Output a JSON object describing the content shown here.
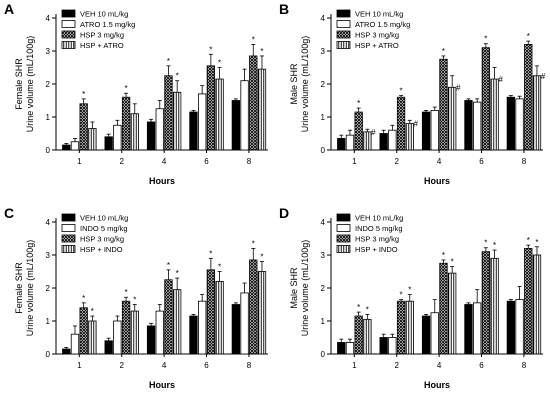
{
  "figure": {
    "background": "#ffffff"
  },
  "chart_data": [
    {
      "panel": "A",
      "type": "bar",
      "ylabel_lines": [
        "Female SHR",
        "Urine volume (mL/100g)"
      ],
      "xlabel": "Hours",
      "categories": [
        "1",
        "2",
        "4",
        "6",
        "8"
      ],
      "ylim": [
        0,
        4
      ],
      "yticks": [
        0,
        1,
        2,
        3,
        4
      ],
      "legend_position": "top-left",
      "series": [
        {
          "name": "VEH 10 mL/kg",
          "fill": "black",
          "values": [
            0.15,
            0.4,
            0.85,
            1.15,
            1.5
          ],
          "errors": [
            0.05,
            0.08,
            0.08,
            0.05,
            0.05
          ],
          "marks": [
            "",
            "",
            "",
            "",
            ""
          ]
        },
        {
          "name": "ATRO 1.5 mg/kg",
          "fill": "white",
          "values": [
            0.25,
            0.75,
            1.25,
            1.7,
            2.1
          ],
          "errors": [
            0.1,
            0.15,
            0.25,
            0.25,
            0.35
          ],
          "marks": [
            "",
            "",
            "",
            "",
            ""
          ]
        },
        {
          "name": "HSP 3 mg/kg",
          "fill": "crosshatch",
          "values": [
            1.4,
            1.6,
            2.25,
            2.55,
            2.85
          ],
          "errors": [
            0.15,
            0.12,
            0.3,
            0.35,
            0.35
          ],
          "marks": [
            "*",
            "*",
            "*",
            "*",
            "*"
          ]
        },
        {
          "name": "HSP + ATRO",
          "fill": "vertical",
          "values": [
            0.65,
            1.1,
            1.75,
            2.15,
            2.45
          ],
          "errors": [
            0.2,
            0.3,
            0.35,
            0.35,
            0.4
          ],
          "marks": [
            "",
            "",
            "*",
            "*",
            "*"
          ]
        }
      ]
    },
    {
      "panel": "B",
      "type": "bar",
      "ylabel_lines": [
        "Male SHR",
        "Urine volume (mL/100g)"
      ],
      "xlabel": "Hours",
      "categories": [
        "1",
        "2",
        "4",
        "6",
        "8"
      ],
      "ylim": [
        0,
        4
      ],
      "yticks": [
        0,
        1,
        2,
        3,
        4
      ],
      "legend_position": "top-left",
      "series": [
        {
          "name": "VEH 10 mL/kg",
          "fill": "black",
          "values": [
            0.35,
            0.5,
            1.15,
            1.5,
            1.6
          ],
          "errors": [
            0.1,
            0.1,
            0.05,
            0.05,
            0.05
          ],
          "marks": [
            "",
            "",
            "",
            "",
            ""
          ]
        },
        {
          "name": "ATRO 1.5 mg/kg",
          "fill": "white",
          "values": [
            0.45,
            0.6,
            1.2,
            1.45,
            1.55
          ],
          "errors": [
            0.15,
            0.15,
            0.1,
            0.1,
            0.08
          ],
          "marks": [
            "",
            "",
            "",
            "",
            ""
          ]
        },
        {
          "name": "HSP 3 mg/kg",
          "fill": "crosshatch",
          "values": [
            1.15,
            1.6,
            2.75,
            3.1,
            3.2
          ],
          "errors": [
            0.12,
            0.05,
            0.1,
            0.12,
            0.1
          ],
          "marks": [
            "*",
            "*",
            "*",
            "*",
            "*"
          ]
        },
        {
          "name": "HSP + ATRO",
          "fill": "vertical",
          "values": [
            0.55,
            0.8,
            1.9,
            2.15,
            2.25
          ],
          "errors": [
            0.08,
            0.1,
            0.35,
            0.35,
            0.3
          ],
          "marks": [
            "#",
            "#",
            "#",
            "#",
            "#"
          ]
        }
      ]
    },
    {
      "panel": "C",
      "type": "bar",
      "ylabel_lines": [
        "Female SHR",
        "Urine volume (mL/100g)"
      ],
      "xlabel": "Hours",
      "categories": [
        "1",
        "2",
        "4",
        "6",
        "8"
      ],
      "ylim": [
        0,
        4
      ],
      "yticks": [
        0,
        1,
        2,
        3,
        4
      ],
      "legend_position": "top-left",
      "series": [
        {
          "name": "VEH 10 mL/kg",
          "fill": "black",
          "values": [
            0.15,
            0.4,
            0.85,
            1.15,
            1.5
          ],
          "errors": [
            0.05,
            0.08,
            0.08,
            0.05,
            0.05
          ],
          "marks": [
            "",
            "",
            "",
            "",
            ""
          ]
        },
        {
          "name": "INDO 5 mg/kg",
          "fill": "white",
          "values": [
            0.6,
            1.0,
            1.3,
            1.6,
            1.85
          ],
          "errors": [
            0.25,
            0.15,
            0.2,
            0.2,
            0.3
          ],
          "marks": [
            "",
            "",
            "",
            "",
            ""
          ]
        },
        {
          "name": "HSP 3 mg/kg",
          "fill": "crosshatch",
          "values": [
            1.4,
            1.6,
            2.25,
            2.55,
            2.85
          ],
          "errors": [
            0.15,
            0.12,
            0.3,
            0.35,
            0.35
          ],
          "marks": [
            "*",
            "*",
            "*",
            "*",
            "*"
          ]
        },
        {
          "name": "HSP + INDO",
          "fill": "vertical",
          "values": [
            1.0,
            1.3,
            1.95,
            2.2,
            2.5
          ],
          "errors": [
            0.15,
            0.2,
            0.35,
            0.3,
            0.3
          ],
          "marks": [
            "*",
            "*",
            "*",
            "*",
            "*"
          ]
        }
      ]
    },
    {
      "panel": "D",
      "type": "bar",
      "ylabel_lines": [
        "Male SHR",
        "Urine volume (mL/100g)"
      ],
      "xlabel": "Hours",
      "categories": [
        "1",
        "2",
        "4",
        "6",
        "8"
      ],
      "ylim": [
        0,
        4
      ],
      "yticks": [
        0,
        1,
        2,
        3,
        4
      ],
      "legend_position": "top-left",
      "series": [
        {
          "name": "VEH 10 mL/kg",
          "fill": "black",
          "values": [
            0.35,
            0.5,
            1.15,
            1.5,
            1.6
          ],
          "errors": [
            0.1,
            0.1,
            0.05,
            0.05,
            0.05
          ],
          "marks": [
            "",
            "",
            "",
            "",
            ""
          ]
        },
        {
          "name": "INDO 5 mg/kg",
          "fill": "white",
          "values": [
            0.35,
            0.5,
            1.25,
            1.55,
            1.65
          ],
          "errors": [
            0.1,
            0.1,
            0.4,
            0.4,
            0.4
          ],
          "marks": [
            "",
            "",
            "",
            "",
            ""
          ]
        },
        {
          "name": "HSP 3 mg/kg",
          "fill": "crosshatch",
          "values": [
            1.15,
            1.6,
            2.75,
            3.1,
            3.2
          ],
          "errors": [
            0.12,
            0.05,
            0.1,
            0.12,
            0.1
          ],
          "marks": [
            "*",
            "*",
            "*",
            "*",
            "*"
          ]
        },
        {
          "name": "HSP + INDO",
          "fill": "vertical",
          "values": [
            1.05,
            1.6,
            2.45,
            2.9,
            3.0
          ],
          "errors": [
            0.15,
            0.2,
            0.2,
            0.25,
            0.25
          ],
          "marks": [
            "*",
            "*",
            "*",
            "*",
            "*"
          ]
        }
      ]
    }
  ]
}
